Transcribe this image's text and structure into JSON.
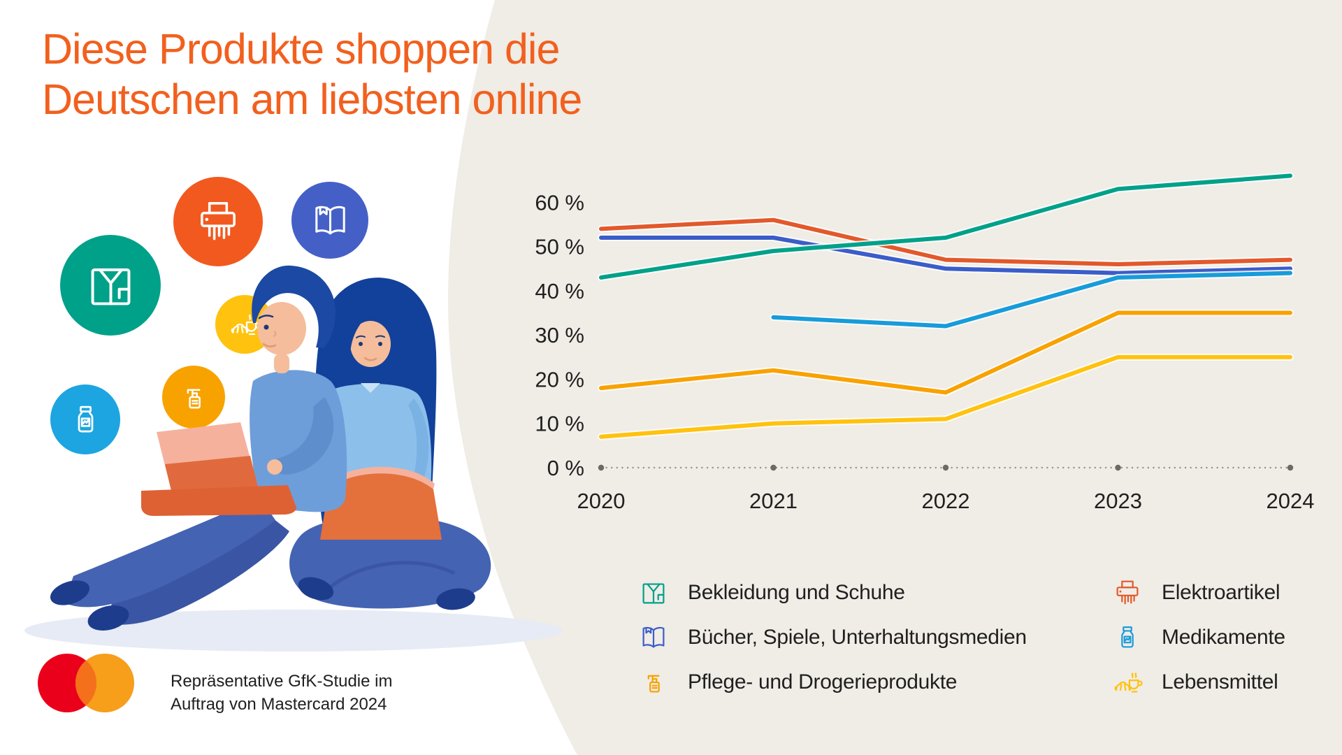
{
  "title": {
    "line1": "Diese Produkte shoppen die",
    "line2": "Deutschen am liebsten online"
  },
  "source_note": {
    "line1": "Repräsentative GfK-Studie im",
    "line2": "Auftrag von Mastercard 2024"
  },
  "colors": {
    "title_accent": "#F2601E",
    "background_blob": "#F0ECE6",
    "text": "#1F1F1F",
    "baseline_dots": "#97918A",
    "year_tick_dot": "#6E6962",
    "mastercard_red": "#EB001B",
    "mastercard_orange": "#F79E1B",
    "mastercard_overlap": "#F4701B"
  },
  "chart_data": {
    "type": "line",
    "x": [
      2020,
      2021,
      2022,
      2023,
      2024
    ],
    "x_labels": [
      "2020",
      "2021",
      "2022",
      "2023",
      "2024"
    ],
    "y_ticks": [
      "0 %",
      "10 %",
      "20 %",
      "30 %",
      "40 %",
      "50 %",
      "60 %"
    ],
    "y_tick_values": [
      0,
      10,
      20,
      30,
      40,
      50,
      60
    ],
    "ylim": [
      0,
      70
    ],
    "grid": false,
    "legend_position": "bottom",
    "series": [
      {
        "name": "Bücher, Spiele, Unterhaltungsmedien",
        "icon": "book",
        "color": "#3B5DC9",
        "values": [
          52,
          52,
          45,
          44,
          45
        ]
      },
      {
        "name": "Elektroartikel",
        "icon": "shredder",
        "color": "#E2592B",
        "values": [
          54,
          56,
          47,
          46,
          47
        ]
      },
      {
        "name": "Bekleidung und Schuhe",
        "icon": "shirt",
        "color": "#00A189",
        "values": [
          43,
          49,
          52,
          63,
          66
        ]
      },
      {
        "name": "Medikamente",
        "icon": "meds",
        "color": "#189CD9",
        "values": [
          null,
          34,
          32,
          43,
          44
        ]
      },
      {
        "name": "Pflege- und Drogerieprodukte",
        "icon": "spray",
        "color": "#F8A200",
        "values": [
          18,
          22,
          17,
          35,
          35
        ]
      },
      {
        "name": "Lebensmittel",
        "icon": "croissant",
        "color": "#FFC20E",
        "values": [
          7,
          10,
          11,
          25,
          25
        ]
      }
    ]
  },
  "legend": {
    "left_indices": [
      2,
      0,
      4
    ],
    "right_indices": [
      1,
      3,
      5
    ]
  },
  "bubbles": [
    {
      "icon": "shirt",
      "color": "#00A189"
    },
    {
      "icon": "shredder",
      "color": "#F1591F"
    },
    {
      "icon": "book",
      "color": "#4460C7"
    },
    {
      "icon": "croissant",
      "color": "#FFC20E"
    },
    {
      "icon": "spray",
      "color": "#F8A200"
    },
    {
      "icon": "meds",
      "color": "#1CA5E0"
    }
  ]
}
